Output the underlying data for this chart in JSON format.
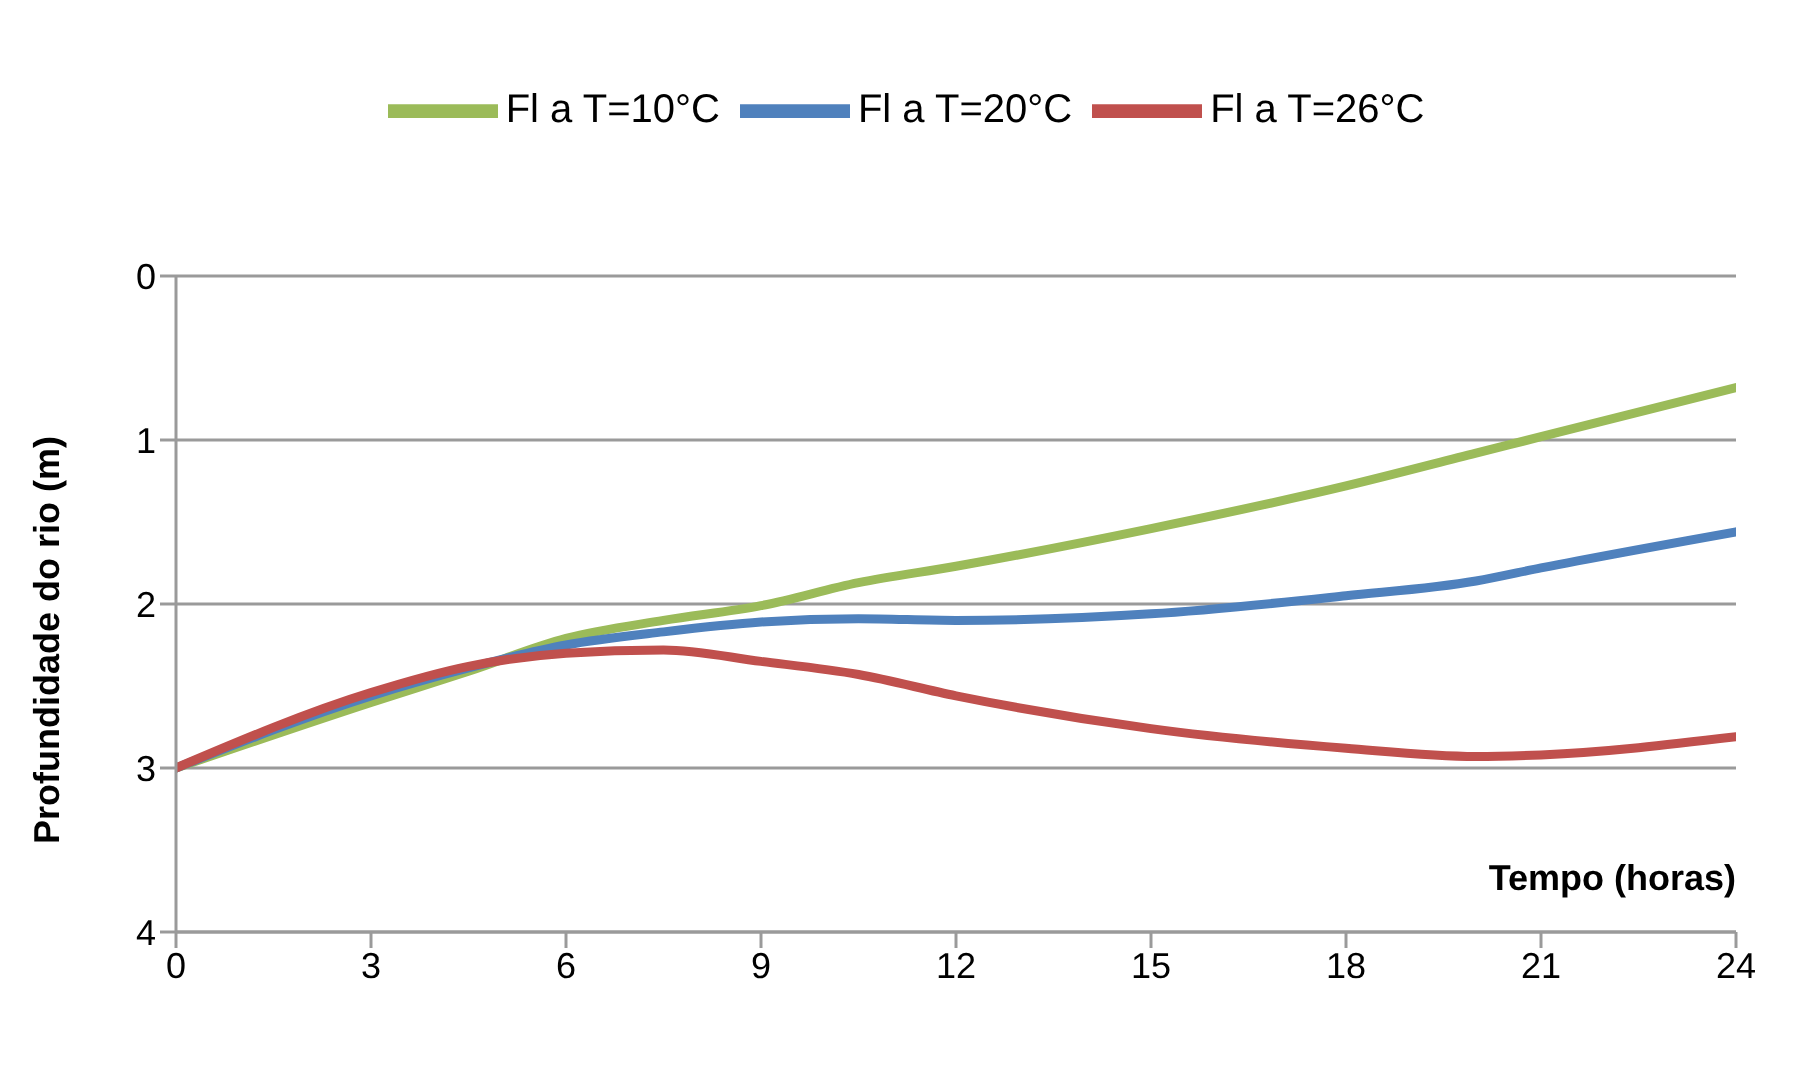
{
  "chart_data": {
    "type": "line",
    "xlabel": "Tempo (horas)",
    "ylabel": "Profundidade do rio (m)",
    "x": [
      0,
      3,
      4.5,
      6,
      7.5,
      9,
      10.5,
      12,
      15,
      18,
      20,
      21,
      24
    ],
    "series": [
      {
        "name": "Fl a T=10°C",
        "color": "#9bbb59",
        "values": [
          3,
          2.6,
          2.41,
          2.21,
          2.1,
          2.01,
          1.87,
          1.77,
          1.54,
          1.28,
          1.08,
          0.98,
          0.68
        ]
      },
      {
        "name": "Fl a T=20°C",
        "color": "#4f81bd",
        "values": [
          3,
          2.56,
          2.39,
          2.25,
          2.17,
          2.11,
          2.09,
          2.1,
          2.06,
          1.95,
          1.86,
          1.78,
          1.56
        ]
      },
      {
        "name": "Fl a T=26°C",
        "color": "#c0504d",
        "values": [
          3,
          2.54,
          2.38,
          2.3,
          2.28,
          2.35,
          2.43,
          2.56,
          2.76,
          2.88,
          2.93,
          2.92,
          2.81
        ]
      }
    ],
    "xlim": [
      0,
      24
    ],
    "xticks": [
      0,
      3,
      6,
      9,
      12,
      15,
      18,
      21,
      24
    ],
    "ylim": [
      4,
      0
    ],
    "yticks": [
      0,
      1,
      2,
      3,
      4
    ],
    "grid": "y",
    "legend": "top",
    "marker": "none",
    "line_style": "solid"
  }
}
